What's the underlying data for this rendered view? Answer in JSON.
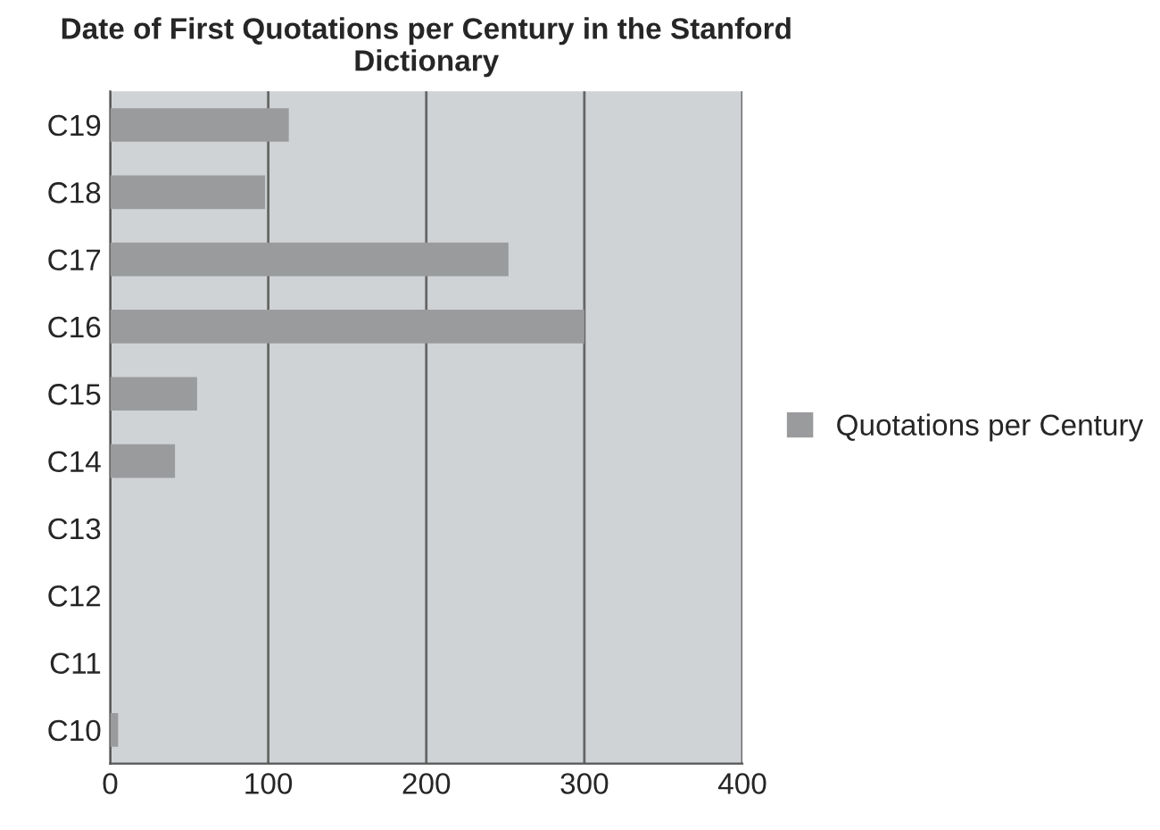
{
  "chart_data": {
    "type": "bar",
    "orientation": "horizontal",
    "title": "Date of First Quotations per Century in the Stanford Dictionary",
    "categories": [
      "C19",
      "C18",
      "C17",
      "C16",
      "C15",
      "C14",
      "C13",
      "C12",
      "C11",
      "C10"
    ],
    "series": [
      {
        "name": "Quotations per Century",
        "color": "#9a9b9d",
        "values": [
          113,
          98,
          252,
          300,
          55,
          41,
          0,
          0,
          0,
          5
        ]
      }
    ],
    "xlim": [
      0,
      400
    ],
    "xticks": [
      0,
      100,
      200,
      300,
      400
    ],
    "grid": "x",
    "legend": "right"
  }
}
